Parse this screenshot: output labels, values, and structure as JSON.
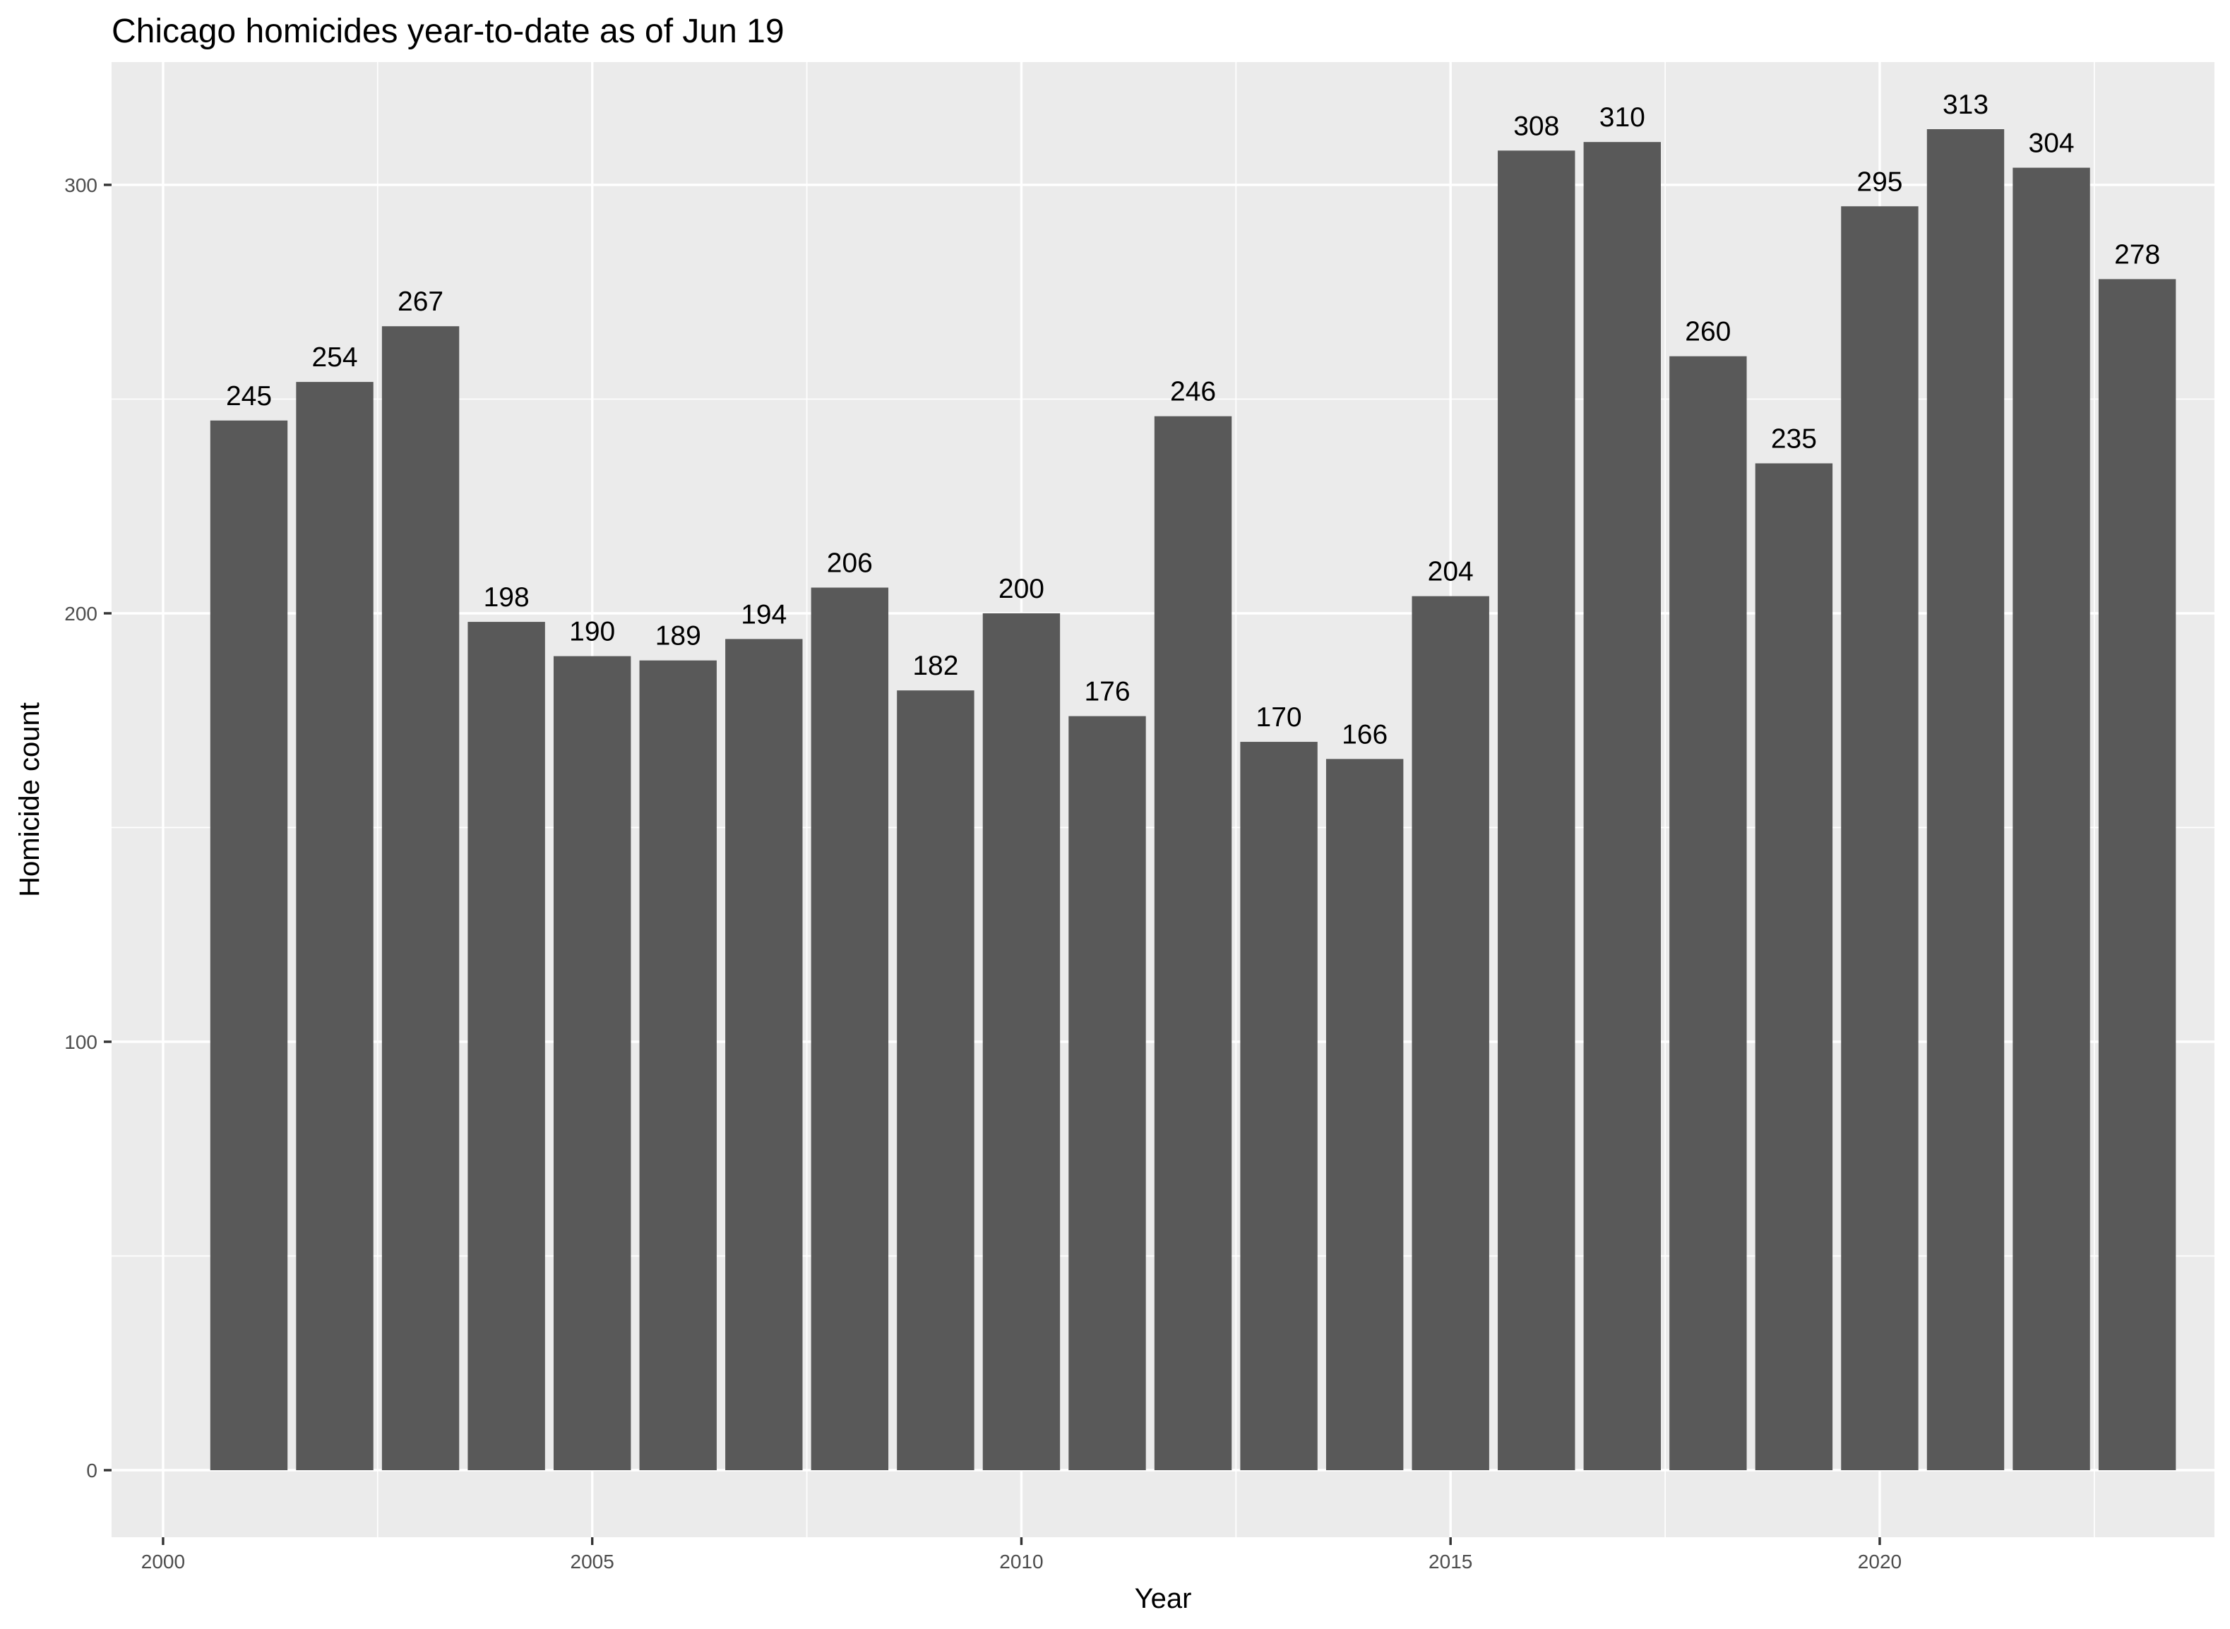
{
  "chart_data": {
    "type": "bar",
    "title": "Chicago homicides year-to-date as of Jun 19",
    "xlabel": "Year",
    "ylabel": "Homicide count",
    "x": [
      2001,
      2002,
      2003,
      2004,
      2005,
      2006,
      2007,
      2008,
      2009,
      2010,
      2011,
      2012,
      2013,
      2014,
      2015,
      2016,
      2017,
      2018,
      2019,
      2020,
      2021,
      2022,
      2023
    ],
    "values": [
      245,
      254,
      267,
      198,
      190,
      189,
      194,
      206,
      182,
      200,
      176,
      246,
      170,
      166,
      204,
      308,
      310,
      260,
      235,
      295,
      313,
      304,
      278
    ],
    "data_labels": [
      "245",
      "254",
      "267",
      "198",
      "190",
      "189",
      "194",
      "206",
      "182",
      "200",
      "176",
      "246",
      "170",
      "166",
      "204",
      "308",
      "310",
      "260",
      "235",
      "295",
      "313",
      "304",
      "278"
    ],
    "x_ticks": [
      2000,
      2005,
      2010,
      2015,
      2020
    ],
    "x_tick_labels": [
      "2000",
      "2005",
      "2010",
      "2015",
      "2020"
    ],
    "y_ticks": [
      0,
      100,
      200,
      300
    ],
    "y_tick_labels": [
      "0",
      "100",
      "200",
      "300"
    ],
    "xlim": [
      1999.4,
      2023.9
    ],
    "ylim": [
      -15.65,
      328.65
    ],
    "grid": true,
    "colors": {
      "bar": "#595959",
      "panel": "#ebebeb",
      "grid": "#ffffff",
      "tick_text": "#4d4d4d",
      "text": "#000000"
    }
  }
}
